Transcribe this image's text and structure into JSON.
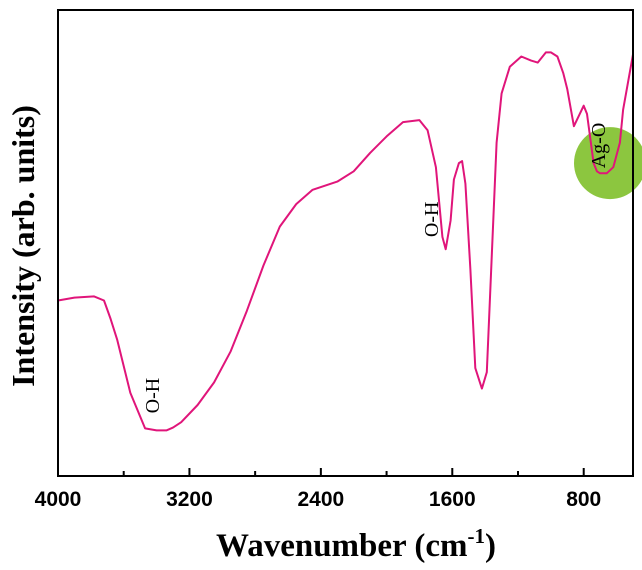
{
  "chart_data": {
    "type": "line",
    "xlabel": "Wavenumber (cm",
    "xlabel_sup": "-1",
    "xlabel_close": ")",
    "ylabel": "Intensity (arb. units)",
    "x_reversed": true,
    "xlim": [
      4000,
      500
    ],
    "ylim": [
      0,
      100
    ],
    "x_ticks": [
      "4000",
      "3200",
      "2400",
      "1600",
      "800"
    ],
    "x_tick_values": [
      4000,
      3200,
      2400,
      1600,
      800
    ],
    "y_ticks_shown": false,
    "grid": false,
    "series": [
      {
        "color": "#e0157a",
        "x": [
          4000,
          3900,
          3780,
          3720,
          3680,
          3640,
          3560,
          3470,
          3400,
          3340,
          3300,
          3250,
          3150,
          3050,
          2950,
          2850,
          2750,
          2650,
          2550,
          2450,
          2300,
          2200,
          2100,
          2000,
          1900,
          1800,
          1750,
          1700,
          1660,
          1640,
          1610,
          1590,
          1560,
          1540,
          1520,
          1490,
          1460,
          1420,
          1390,
          1360,
          1330,
          1300,
          1250,
          1180,
          1120,
          1080,
          1030,
          1000,
          960,
          925,
          900,
          860,
          800,
          780,
          760,
          740,
          720,
          700,
          660,
          620,
          580,
          560,
          500
        ],
        "y": [
          35.5,
          36.2,
          36.5,
          35.5,
          31,
          26,
          13,
          4.3,
          3.8,
          3.8,
          4.5,
          5.8,
          10,
          15.5,
          23,
          33,
          44,
          53.5,
          59,
          62.5,
          64.5,
          67,
          71.5,
          75.5,
          79,
          79.5,
          77,
          68,
          51,
          48,
          55,
          65,
          69,
          69.5,
          64,
          43,
          19,
          14,
          18,
          46,
          74,
          86,
          92.5,
          95,
          94,
          93.5,
          96,
          96,
          95,
          91,
          87,
          78,
          83,
          81,
          75,
          69,
          67,
          66.5,
          66.5,
          68,
          74,
          82,
          95.5
        ]
      }
    ],
    "annotations": [
      {
        "label": "O-H",
        "x": 3350,
        "y": 4,
        "orientation": "vertical"
      },
      {
        "label": "O-H",
        "x": 1650,
        "y": 47,
        "orientation": "vertical"
      },
      {
        "label": "Ag-O",
        "x": 635,
        "y": 65,
        "orientation": "vertical",
        "highlight": "green-circle"
      }
    ],
    "highlight": {
      "x": 640,
      "y": 69,
      "color": "#8cc63f"
    }
  }
}
